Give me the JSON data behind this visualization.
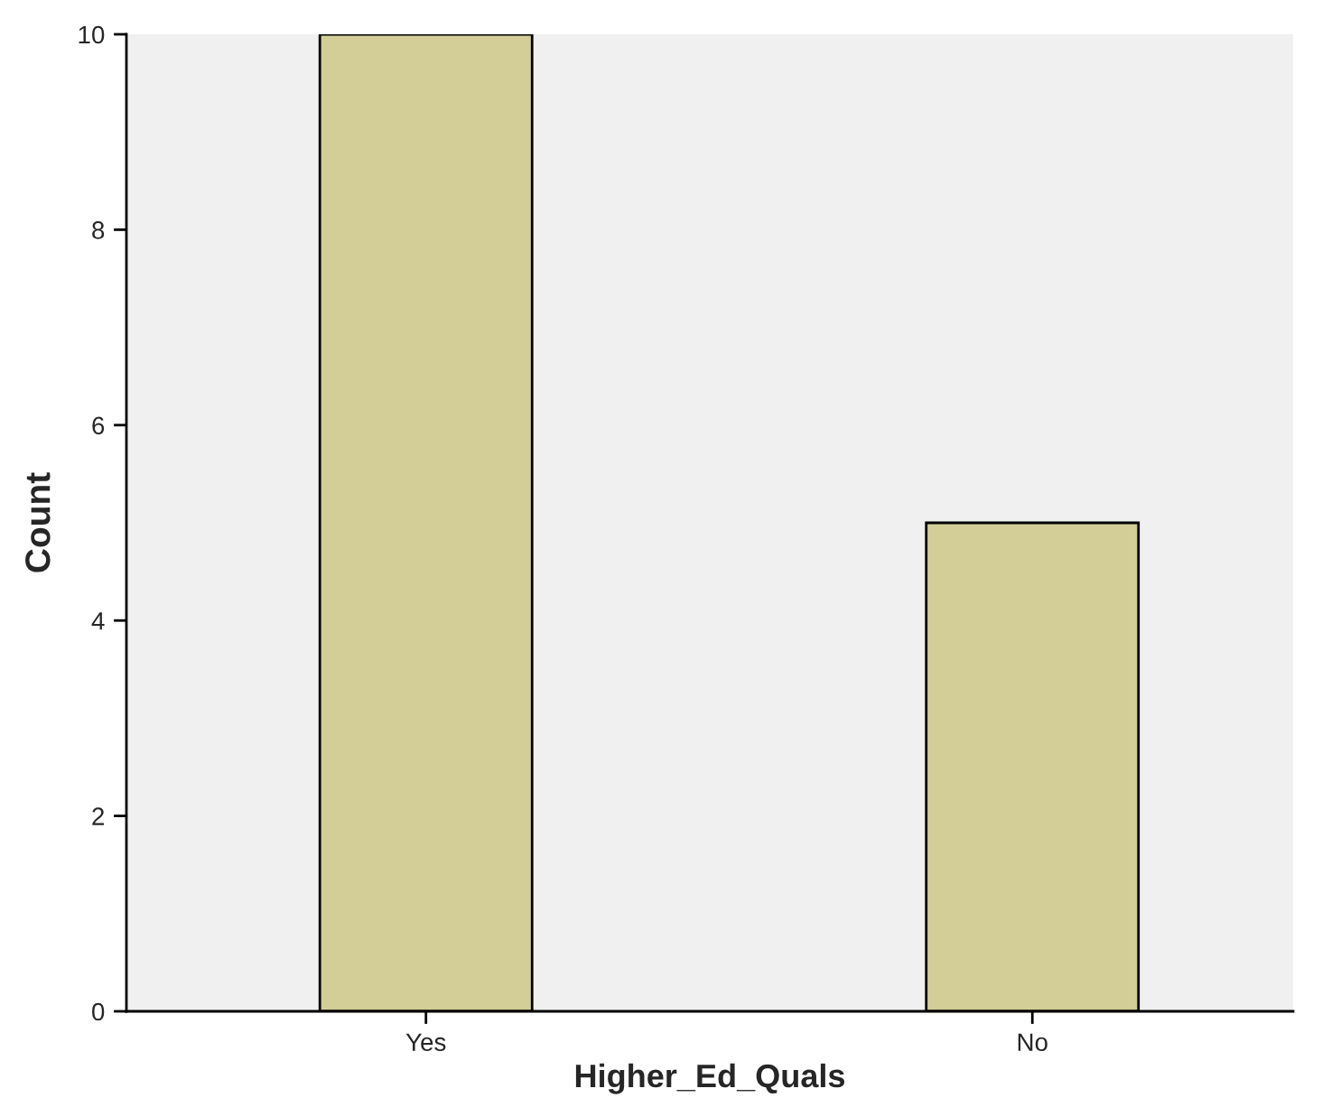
{
  "chart_data": {
    "type": "bar",
    "xlabel": "Higher_Ed_Quals",
    "ylabel": "Count",
    "categories": [
      "Yes",
      "No"
    ],
    "values": [
      10,
      5
    ],
    "color": "#d3ce97",
    "ylim": [
      0,
      10
    ],
    "yticks": [
      0,
      2,
      4,
      6,
      8,
      10
    ],
    "grid": false,
    "legend": false
  }
}
